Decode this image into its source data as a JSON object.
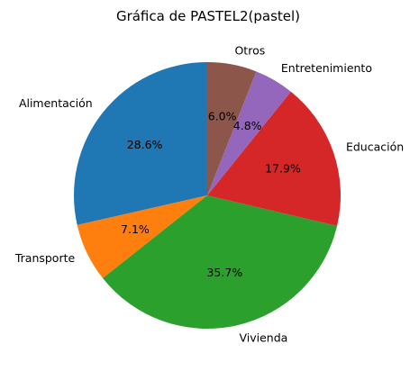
{
  "chart_data": {
    "type": "pie",
    "title": "Gráfica de PASTEL2(pastel)",
    "start_angle_deg": 90,
    "direction": "counterclockwise",
    "slices": [
      {
        "label": "Alimentación",
        "value": 28.6,
        "pct_label": "28.6%",
        "color": "#1f77b4"
      },
      {
        "label": "Transporte",
        "value": 7.1,
        "pct_label": "7.1%",
        "color": "#ff7f0e"
      },
      {
        "label": "Vivienda",
        "value": 35.7,
        "pct_label": "35.7%",
        "color": "#2ca02c"
      },
      {
        "label": "Educación",
        "value": 17.9,
        "pct_label": "17.9%",
        "color": "#d62728"
      },
      {
        "label": "Entretenimiento",
        "value": 4.8,
        "pct_label": "4.8%",
        "color": "#9467bd"
      },
      {
        "label": "Otros",
        "value": 6.0,
        "pct_label": "6.0%",
        "color": "#8c564b"
      }
    ]
  }
}
